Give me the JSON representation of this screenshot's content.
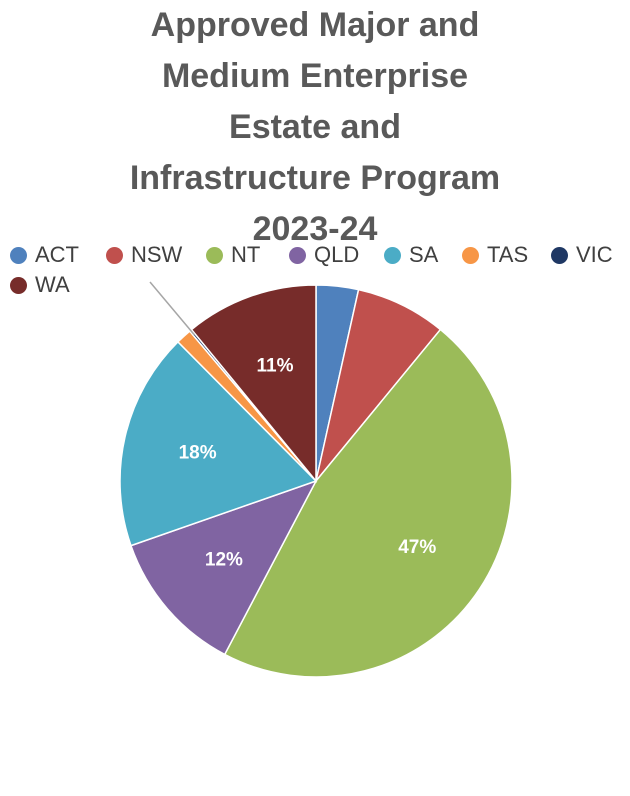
{
  "chart_data": {
    "type": "pie",
    "title_lines": [
      "Approved Major and",
      "Medium Enterprise",
      "Estate and",
      "Infrastructure Program",
      "2023-24"
    ],
    "legend_position": "top",
    "categories": [
      "ACT",
      "NSW",
      "NT",
      "QLD",
      "SA",
      "TAS",
      "VIC",
      "WA"
    ],
    "values": [
      3.5,
      7.5,
      47,
      12,
      18,
      1.3,
      0.2,
      11
    ],
    "data_labels": [
      "",
      "",
      "47%",
      "12%",
      "18%",
      "",
      "",
      "11%"
    ],
    "colors": [
      "#4F81BD",
      "#C0504D",
      "#9BBB59",
      "#8064A2",
      "#4BACC6",
      "#F79646",
      "#1F3864",
      "#772C2A"
    ]
  }
}
